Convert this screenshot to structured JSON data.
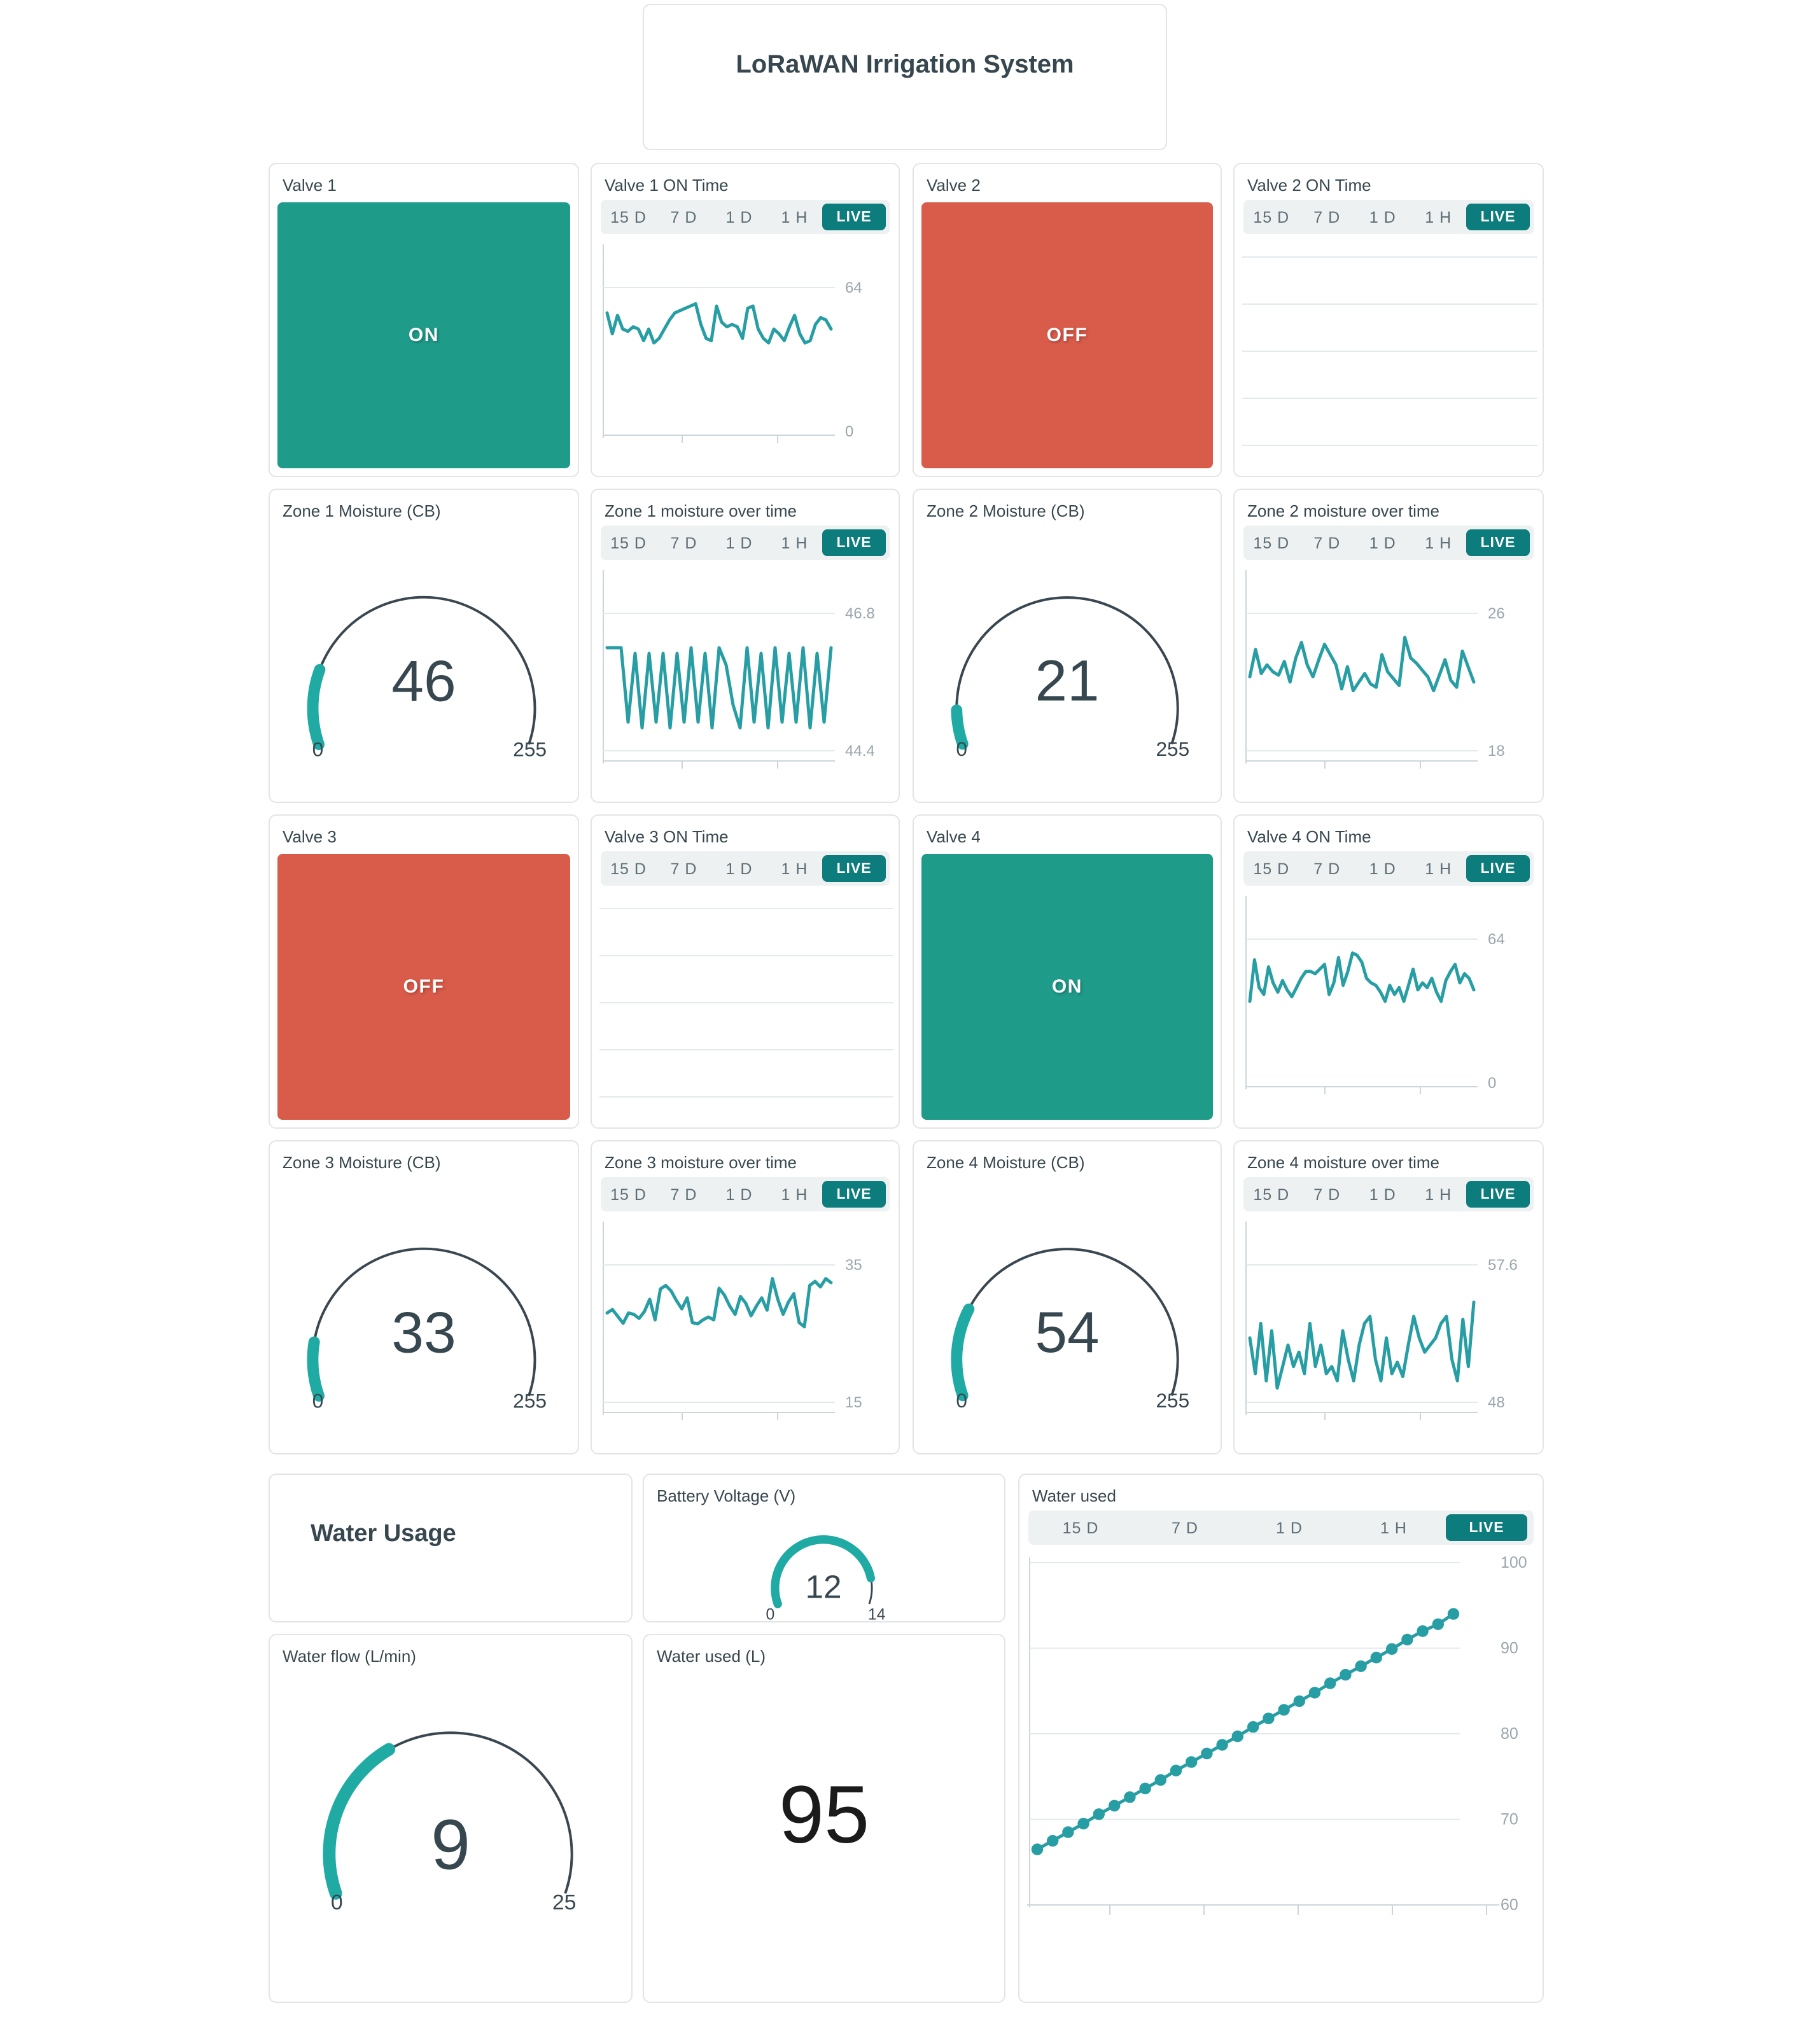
{
  "header": {
    "title": "LoRaWAN Irrigation System"
  },
  "timebar": {
    "labels": [
      "15 D",
      "7 D",
      "1 D",
      "1 H"
    ],
    "live": "LIVE"
  },
  "colors": {
    "on_green": "#1f9b8a",
    "off_red": "#d95b4a",
    "live_teal": "#0d7c7c",
    "line_teal": "#279ea4",
    "gauge_teal": "#20aaa4",
    "gauge_rest": "#3a4750",
    "grid_light": "#e4e9ec",
    "axis_gray": "#ccd6da",
    "label_gray": "#9aa6ad",
    "title_slate": "#37474f"
  },
  "valves": {
    "valve1": {
      "title": "Valve 1",
      "state": "ON"
    },
    "valve2": {
      "title": "Valve 2",
      "state": "OFF"
    },
    "valve3": {
      "title": "Valve 3",
      "state": "OFF"
    },
    "valve4": {
      "title": "Valve 4",
      "state": "ON"
    }
  },
  "gauges": {
    "zone1": {
      "title": "Zone 1 Moisture (CB)",
      "value": 46,
      "min": 0,
      "max": 255
    },
    "zone2": {
      "title": "Zone 2 Moisture (CB)",
      "value": 21,
      "min": 0,
      "max": 255
    },
    "zone3": {
      "title": "Zone 3 Moisture (CB)",
      "value": 33,
      "min": 0,
      "max": 255
    },
    "zone4": {
      "title": "Zone 4 Moisture (CB)",
      "value": 54,
      "min": 0,
      "max": 255
    },
    "battery": {
      "title": "Battery Voltage (V)",
      "value": 12,
      "min": 0,
      "max": 14
    },
    "water_flow": {
      "title": "Water flow (L/min)",
      "value": 9,
      "min": 0,
      "max": 25
    }
  },
  "water_usage_section": {
    "title": "Water Usage"
  },
  "water_used_value": {
    "title": "Water used (L)",
    "value": "95"
  },
  "chart_data": {
    "valve1_on_time": {
      "type": "line",
      "title": "Valve 1 ON Time",
      "ylim": [
        0,
        64
      ],
      "y_top": 64,
      "y_bottom": 0,
      "bottom_at_axis": true,
      "grid": true,
      "legend": "none",
      "values": [
        53,
        44,
        52,
        46,
        45,
        47,
        46,
        41,
        46,
        40,
        42,
        46,
        50,
        53,
        54,
        55,
        56,
        57,
        48,
        42,
        41,
        56,
        49,
        47,
        48,
        47,
        42,
        55,
        56,
        46,
        42,
        40,
        46,
        44,
        41,
        47,
        52,
        44,
        40,
        41,
        48,
        51,
        50,
        46
      ]
    },
    "valve2_on_time": {
      "type": "line",
      "title": "Valve 2 ON Time",
      "values": [],
      "gridlines": 5,
      "empty": true
    },
    "zone1_moisture": {
      "type": "line",
      "title": "Zone 1 moisture over time",
      "ylim": [
        44.4,
        46.8
      ],
      "y_top": 46.8,
      "y_bottom": 44.4,
      "bottom_at_axis": false,
      "values": [
        46.2,
        46.2,
        46.2,
        44.9,
        46.1,
        44.8,
        46.1,
        44.9,
        46.1,
        44.8,
        46.1,
        44.9,
        46.2,
        44.9,
        46.1,
        44.8,
        46.2,
        45.9,
        45.2,
        44.8,
        46.2,
        44.9,
        46.1,
        44.8,
        46.2,
        44.9,
        46.1,
        44.9,
        46.2,
        44.8,
        46.1,
        44.9,
        46.2
      ]
    },
    "zone2_moisture": {
      "type": "line",
      "title": "Zone 2 moisture over time",
      "ylim": [
        18,
        26
      ],
      "y_top": 26,
      "y_bottom": 18,
      "bottom_at_axis": false,
      "values": [
        22.3,
        23.9,
        22.5,
        23.0,
        22.6,
        22.4,
        23.2,
        22.0,
        23.4,
        24.3,
        23.0,
        22.3,
        23.3,
        24.2,
        23.6,
        23.0,
        21.6,
        22.9,
        21.5,
        22.0,
        22.5,
        21.9,
        21.7,
        23.6,
        22.6,
        22.2,
        21.8,
        24.6,
        23.4,
        23.1,
        22.7,
        22.3,
        21.5,
        22.4,
        23.3,
        22.1,
        21.7,
        23.8,
        22.9,
        22.0
      ]
    },
    "valve3_on_time": {
      "type": "line",
      "title": "Valve 3 ON Time",
      "values": [],
      "gridlines": 5,
      "empty": true
    },
    "valve4_on_time": {
      "type": "line",
      "title": "Valve 4 ON Time",
      "ylim": [
        0,
        64
      ],
      "y_top": 64,
      "y_bottom": 0,
      "bottom_at_axis": true,
      "values": [
        37,
        55,
        43,
        40,
        52,
        45,
        41,
        46,
        42,
        39,
        43,
        47,
        50,
        50,
        49,
        51,
        53,
        40,
        45,
        56,
        44,
        50,
        58,
        57,
        54,
        47,
        45,
        44,
        41,
        37,
        44,
        40,
        43,
        37,
        44,
        51,
        42,
        45,
        43,
        47,
        41,
        37,
        46,
        50,
        53,
        45,
        49,
        47,
        42
      ]
    },
    "zone3_moisture": {
      "type": "line",
      "title": "Zone 3 moisture over time",
      "ylim": [
        15,
        35
      ],
      "y_top": 35,
      "y_bottom": 15,
      "bottom_at_axis": false,
      "values": [
        28,
        28.5,
        27.5,
        26.5,
        28,
        27.8,
        27.2,
        28.2,
        30,
        27,
        31.5,
        32,
        31.2,
        29.8,
        28.6,
        30.2,
        26.6,
        26.4,
        27,
        27.4,
        27,
        31.6,
        30.6,
        29,
        27.8,
        30.4,
        29.4,
        27.6,
        29,
        30.2,
        28.4,
        33,
        30,
        27.8,
        29.6,
        30.8,
        26.6,
        26,
        32,
        32.6,
        31.8,
        33,
        32.4
      ]
    },
    "zone4_moisture": {
      "type": "line",
      "title": "Zone 4 moisture over time",
      "ylim": [
        48,
        57.6
      ],
      "y_top": 57.6,
      "y_bottom": 48,
      "bottom_at_axis": false,
      "values": [
        52.5,
        50,
        53.5,
        49.5,
        53,
        49,
        50.5,
        52,
        50.5,
        51.5,
        50,
        53.5,
        50.5,
        52,
        50,
        50.5,
        49.5,
        53,
        51,
        49.5,
        52,
        53.5,
        54,
        51,
        49.5,
        52.5,
        50,
        50.8,
        49.8,
        52,
        54,
        52.5,
        51.5,
        52,
        52.5,
        53.5,
        54,
        51,
        49.5,
        53.8,
        50.5,
        55
      ]
    },
    "water_used": {
      "type": "scatter",
      "title": "Water used",
      "ylim": [
        60,
        100
      ],
      "y_ticks": [
        100,
        90,
        80,
        70,
        60
      ],
      "values": [
        66.5,
        67.5,
        68.5,
        69.5,
        70.6,
        71.6,
        72.6,
        73.6,
        74.6,
        75.7,
        76.7,
        77.7,
        78.7,
        79.7,
        80.8,
        81.8,
        82.8,
        83.8,
        84.8,
        85.9,
        86.9,
        87.9,
        88.9,
        89.9,
        91,
        92,
        92.8,
        94
      ]
    }
  }
}
